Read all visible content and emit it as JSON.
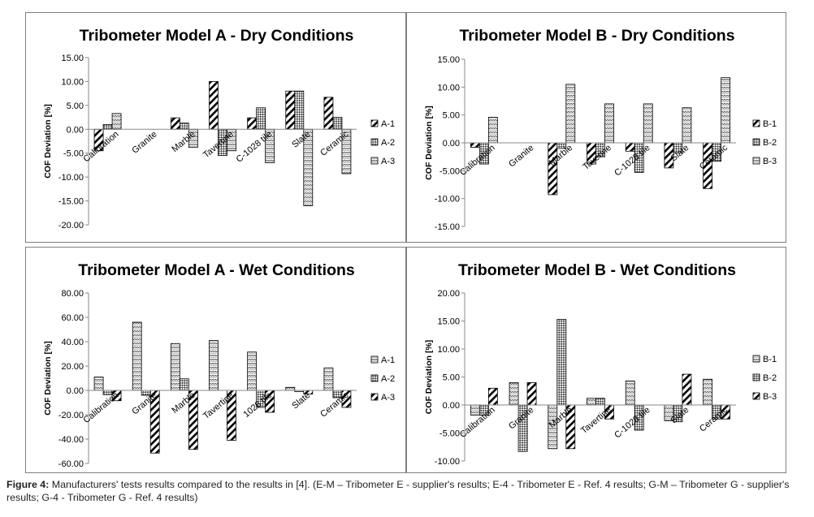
{
  "caption": {
    "label": "Figure 4:",
    "text": "Manufacturers' tests results compared to the results in [4]. (E-M – Tribometer E - supplier's results; E-4 - Tribometer E - Ref. 4 results; G-M – Tribometer G - supplier's results; G-4 - Tribometer G - Ref. 4 results)"
  },
  "chart_data": [
    {
      "type": "bar",
      "title": "Tribometer Model A - Dry Conditions",
      "ylabel": "COF Deviation [%]",
      "xlabel": "",
      "categories": [
        "Calibration",
        "Granite",
        "Marble",
        "Tavertine",
        "C-1028 tile",
        "Slate",
        "Ceramic"
      ],
      "ylim": [
        -20,
        15
      ],
      "yticks": [
        15,
        10,
        5,
        0,
        -5,
        -10,
        -15,
        -20
      ],
      "grid": false,
      "legend": "right",
      "series": [
        {
          "name": "A-1",
          "pattern": "diag",
          "values": [
            -4.5,
            0,
            2.4,
            10.0,
            2.4,
            8.0,
            6.7
          ]
        },
        {
          "name": "A-2",
          "pattern": "check",
          "values": [
            1.0,
            0,
            1.3,
            -5.5,
            4.5,
            8.0,
            2.5
          ]
        },
        {
          "name": "A-3",
          "pattern": "wave",
          "values": [
            3.3,
            0,
            -3.8,
            -4.5,
            -7.0,
            -16.0,
            -9.3
          ]
        }
      ]
    },
    {
      "type": "bar",
      "title": "Tribometer Model B - Dry Conditions",
      "ylabel": "COF Deviation [%]",
      "xlabel": "",
      "categories": [
        "Calibration",
        "Granite",
        "Marble",
        "Taverine",
        "C-1028 tile",
        "Slate",
        "Ceramic"
      ],
      "ylim": [
        -15,
        15
      ],
      "yticks": [
        15,
        10,
        5,
        0,
        -5,
        -10,
        -15
      ],
      "grid": false,
      "legend": "right",
      "series": [
        {
          "name": "B-1",
          "pattern": "diag",
          "values": [
            -0.8,
            0,
            -9.3,
            -3.8,
            -1.5,
            -4.5,
            -8.2
          ]
        },
        {
          "name": "B-2",
          "pattern": "check",
          "values": [
            -3.8,
            0,
            -1.0,
            -2.5,
            -5.3,
            -1.8,
            -3.3
          ]
        },
        {
          "name": "B-3",
          "pattern": "wave",
          "values": [
            4.6,
            0,
            10.5,
            7.0,
            7.0,
            6.3,
            11.7
          ]
        }
      ]
    },
    {
      "type": "bar",
      "title": "Tribometer Model A - Wet Conditions",
      "ylabel": "COF Deviation [%]",
      "xlabel": "",
      "categories": [
        "Calibration",
        "Granite",
        "Marble",
        "Tavertine",
        "1028 tile",
        "Slate",
        "Ceramic"
      ],
      "ylim": [
        -60,
        80
      ],
      "yticks": [
        80,
        60,
        40,
        20,
        0,
        -20,
        -40,
        -60
      ],
      "grid": false,
      "legend": "right",
      "series": [
        {
          "name": "A-1",
          "pattern": "wave",
          "values": [
            11.0,
            56.0,
            38.5,
            41.0,
            31.5,
            2.5,
            18.5
          ]
        },
        {
          "name": "A-2",
          "pattern": "check",
          "values": [
            -3.5,
            -4.0,
            9.5,
            0,
            -14.0,
            -1.0,
            -6.0
          ]
        },
        {
          "name": "A-3",
          "pattern": "diag",
          "values": [
            -8.5,
            -51.5,
            -48.5,
            -41.0,
            -18.0,
            -3.0,
            -14.0
          ]
        }
      ]
    },
    {
      "type": "bar",
      "title": "Tribometer Model B - Wet Conditions",
      "ylabel": "COF Deviation [%]",
      "xlabel": "",
      "categories": [
        "Calibration",
        "Granite",
        "Marble",
        "Tavertine",
        "C-1028 tile",
        "Slate",
        "Ceramic"
      ],
      "ylim": [
        -10,
        20
      ],
      "yticks": [
        20,
        15,
        10,
        5,
        0,
        -5,
        -10
      ],
      "grid": false,
      "legend": "right",
      "series": [
        {
          "name": "B-1",
          "pattern": "wave",
          "values": [
            -1.8,
            4.0,
            -7.8,
            1.2,
            4.3,
            -2.8,
            4.6
          ]
        },
        {
          "name": "B-2",
          "pattern": "check",
          "values": [
            -1.8,
            -8.3,
            15.3,
            1.2,
            -4.5,
            -3.0,
            -2.5
          ]
        },
        {
          "name": "B-3",
          "pattern": "diag",
          "values": [
            3.0,
            4.0,
            -7.8,
            -2.5,
            0,
            5.5,
            -2.5
          ]
        }
      ]
    }
  ]
}
